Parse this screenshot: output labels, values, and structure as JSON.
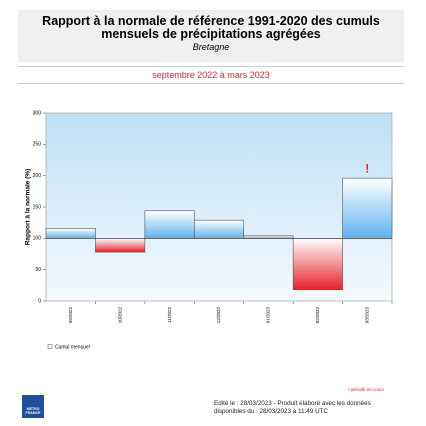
{
  "header": {
    "title": "Rapport à la normale de référence 1991-2020 des cumuls mensuels de précipitations agrégées",
    "subtitle": "Bretagne",
    "period": "septembre 2022 à mars 2023"
  },
  "chart_data": {
    "type": "bar",
    "ylabel": "Rapport à la normale (%)",
    "categories": [
      "09/2022",
      "10/2022",
      "11/2022",
      "12/2022",
      "01/2023",
      "02/2023",
      "03/2023"
    ],
    "series": [
      {
        "name": "Cumul mensuel",
        "color": "#5fb2ec",
        "negative_color": "#e8212b",
        "values": [
          116,
          78,
          144,
          129,
          104,
          18,
          196
        ]
      }
    ],
    "reference": 100,
    "ylim": [
      0,
      300
    ],
    "yticks": [
      0,
      50,
      100,
      150,
      200,
      250,
      300
    ],
    "annotation": "!",
    "note": "! période en cours"
  },
  "footer": {
    "edition": "Edité le : 28/03/2023 - Produit élaboré avec les données disponibles du : 28/03/2023 à 11:49 UTC",
    "logo": "METEO FRANCE"
  }
}
